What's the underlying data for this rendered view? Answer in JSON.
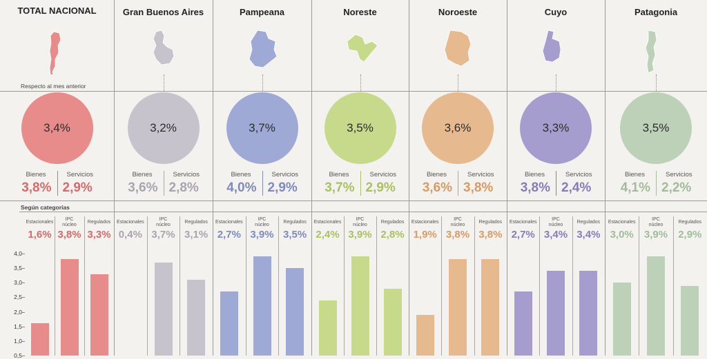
{
  "note_top": "Respecto al mes anterior",
  "note_categories": "Según categorías",
  "labels": {
    "bienes": "Bienes",
    "servicios": "Servicios",
    "estacionales": "Estacionales",
    "ipc_nucleo": "IPC núcleo",
    "regulados": "Regulados"
  },
  "chart_data": {
    "type": "bar",
    "categories": [
      "Estacionales",
      "IPC núcleo",
      "Regulados"
    ],
    "ylim": [
      0.5,
      4.0
    ],
    "yticks": [
      "4,0",
      "3,5",
      "3,0",
      "2,5",
      "2,0",
      "1,5",
      "1,0",
      "0,5"
    ],
    "regions": [
      {
        "name": "TOTAL NACIONAL",
        "color": "#e88b8b",
        "value_color": "#d86a6a",
        "monthly": "3,4%",
        "bienes": "3,8%",
        "servicios": "2,9%",
        "values": [
          1.6,
          3.8,
          3.3
        ],
        "value_labels": [
          "1,6%",
          "3,8%",
          "3,3%"
        ]
      },
      {
        "name": "Gran Buenos Aires",
        "color": "#c7c3cd",
        "value_color": "#a9a4b0",
        "monthly": "3,2%",
        "bienes": "3,6%",
        "servicios": "2,8%",
        "values": [
          0.4,
          3.7,
          3.1
        ],
        "value_labels": [
          "0,4%",
          "3,7%",
          "3,1%"
        ]
      },
      {
        "name": "Pampeana",
        "color": "#9fa9d6",
        "value_color": "#7f89c2",
        "monthly": "3,7%",
        "bienes": "4,0%",
        "servicios": "2,9%",
        "values": [
          2.7,
          3.9,
          3.5
        ],
        "value_labels": [
          "2,7%",
          "3,9%",
          "3,5%"
        ]
      },
      {
        "name": "Noreste",
        "color": "#c7da8c",
        "value_color": "#a9c063",
        "monthly": "3,5%",
        "bienes": "3,7%",
        "servicios": "2,9%",
        "values": [
          2.4,
          3.9,
          2.8
        ],
        "value_labels": [
          "2,4%",
          "3,9%",
          "2,8%"
        ]
      },
      {
        "name": "Noroeste",
        "color": "#e7b98e",
        "value_color": "#d99b66",
        "monthly": "3,6%",
        "bienes": "3,6%",
        "servicios": "3,8%",
        "values": [
          1.9,
          3.8,
          3.8
        ],
        "value_labels": [
          "1,9%",
          "3,8%",
          "3,8%"
        ]
      },
      {
        "name": "Cuyo",
        "color": "#a59dcd",
        "value_color": "#857cbb",
        "monthly": "3,3%",
        "bienes": "3,8%",
        "servicios": "2,4%",
        "values": [
          2.7,
          3.4,
          3.4
        ],
        "value_labels": [
          "2,7%",
          "3,4%",
          "3,4%"
        ]
      },
      {
        "name": "Patagonia",
        "color": "#bcd1b7",
        "value_color": "#a3bb9c",
        "monthly": "3,5%",
        "bienes": "4,1%",
        "servicios": "2,2%",
        "values": [
          3.0,
          3.9,
          2.9
        ],
        "value_labels": [
          "3,0%",
          "3,9%",
          "2,9%"
        ]
      }
    ]
  }
}
